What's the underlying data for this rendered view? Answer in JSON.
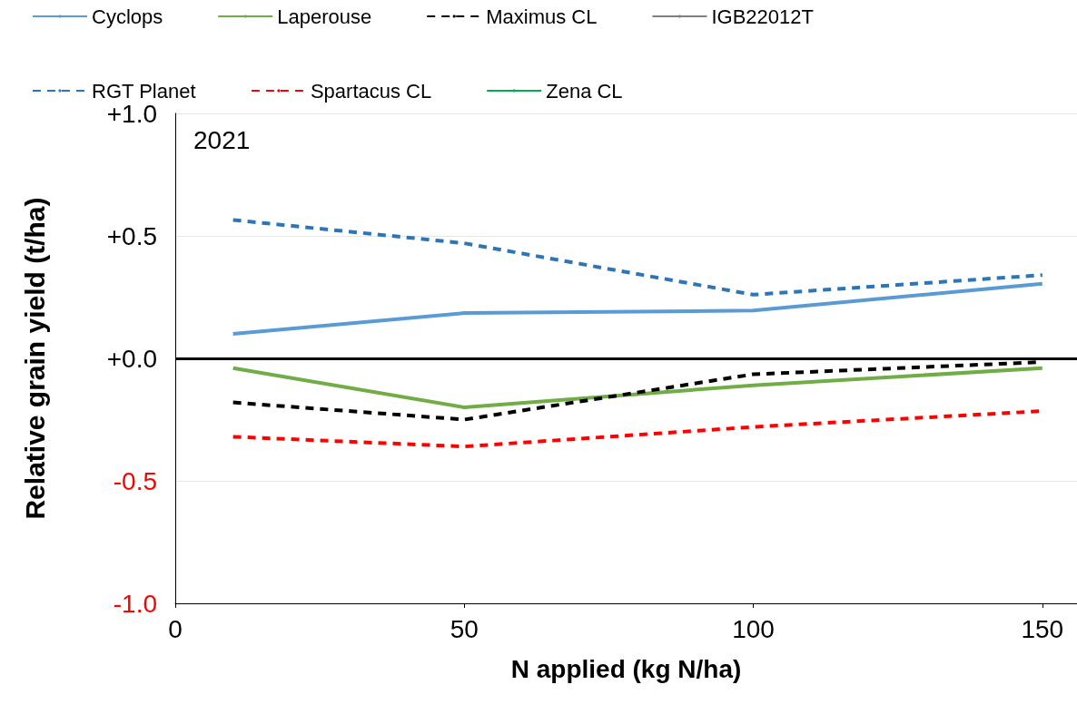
{
  "chart_data": {
    "type": "line",
    "xlabel": "N applied (kg N/ha)",
    "ylabel": "Relative grain yield (t/ha)",
    "annotations": [
      "2021"
    ],
    "x": [
      10,
      50,
      100,
      150
    ],
    "series": [
      {
        "name": "Cyclops",
        "color": "#5b9bd5",
        "line_style": "solid",
        "values": [
          0.1,
          0.185,
          0.195,
          0.305
        ]
      },
      {
        "name": "Laperouse",
        "color": "#70ad47",
        "line_style": "solid",
        "values": [
          -0.04,
          -0.2,
          -0.11,
          -0.04
        ]
      },
      {
        "name": "Maximus CL",
        "color": "#000000",
        "line_style": "dashed",
        "values": [
          -0.18,
          -0.25,
          -0.065,
          -0.015
        ]
      },
      {
        "name": "IGB22012T",
        "color": "#7f7f7f",
        "line_style": "solid",
        "values": [
          null,
          null,
          null,
          null
        ]
      },
      {
        "name": "RGT Planet",
        "color": "#2e75b6",
        "line_style": "dashed",
        "values": [
          0.565,
          0.47,
          0.26,
          0.34
        ]
      },
      {
        "name": "Spartacus CL",
        "color": "#ff0000",
        "line_style": "dashed",
        "values": [
          -0.32,
          -0.36,
          -0.28,
          -0.215
        ]
      },
      {
        "name": "Zena CL",
        "color": "#00b050",
        "line_style": "solid",
        "values": [
          null,
          null,
          null,
          null
        ]
      }
    ],
    "xlim": [
      0,
      156
    ],
    "xticks": [
      0,
      50,
      100,
      150
    ],
    "ylim": [
      -1,
      1
    ],
    "yticks": [
      {
        "value": -1,
        "label": "-1.0"
      },
      {
        "value": -0.5,
        "label": "-0.5"
      },
      {
        "value": 0,
        "label": "+0.0"
      },
      {
        "value": 0.5,
        "label": "+0.5"
      },
      {
        "value": 1,
        "label": "+1.0"
      }
    ],
    "ref_lines": [
      {
        "axis": "y",
        "value": 0,
        "color": "#000000",
        "line_style": "solid"
      }
    ],
    "grid": "y",
    "legend": "top",
    "marker": "none"
  }
}
